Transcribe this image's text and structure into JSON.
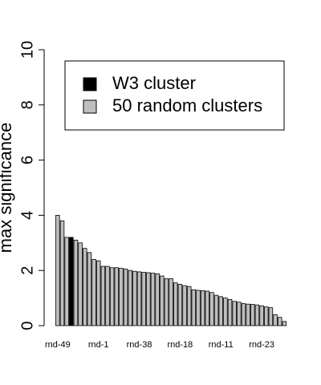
{
  "chart_data": {
    "type": "bar",
    "ylabel": "max significance",
    "categories": [
      "rnd-49",
      null,
      null,
      null,
      null,
      null,
      null,
      null,
      null,
      "rnd-1",
      null,
      null,
      null,
      null,
      null,
      null,
      null,
      null,
      "rnd-38",
      null,
      null,
      null,
      null,
      null,
      null,
      null,
      null,
      "rnd-18",
      null,
      null,
      null,
      null,
      null,
      null,
      null,
      null,
      "rnd-11",
      null,
      null,
      null,
      null,
      null,
      null,
      null,
      null,
      "rnd-23",
      null,
      null,
      null,
      null,
      null
    ],
    "series": [
      {
        "name": "W3 cluster",
        "color": "#000000",
        "values": [
          null,
          null,
          null,
          3.2,
          null,
          null,
          null,
          null,
          null,
          null,
          null,
          null,
          null,
          null,
          null,
          null,
          null,
          null,
          null,
          null,
          null,
          null,
          null,
          null,
          null,
          null,
          null,
          null,
          null,
          null,
          null,
          null,
          null,
          null,
          null,
          null,
          null,
          null,
          null,
          null,
          null,
          null,
          null,
          null,
          null,
          null,
          null,
          null,
          null,
          null,
          null
        ]
      },
      {
        "name": "50 random clusters",
        "color": "#bebebe",
        "values": [
          4.0,
          3.8,
          3.2,
          null,
          3.1,
          3.0,
          2.8,
          2.65,
          2.4,
          2.35,
          2.15,
          2.15,
          2.1,
          2.1,
          2.08,
          2.05,
          2.0,
          1.97,
          1.95,
          1.93,
          1.92,
          1.9,
          1.88,
          1.8,
          1.7,
          1.7,
          1.55,
          1.5,
          1.45,
          1.42,
          1.3,
          1.28,
          1.27,
          1.25,
          1.2,
          1.1,
          1.05,
          1.0,
          0.95,
          0.88,
          0.85,
          0.8,
          0.78,
          0.77,
          0.75,
          0.72,
          0.68,
          0.65,
          0.4,
          0.3,
          0.15
        ]
      }
    ],
    "ylim": [
      0,
      10
    ],
    "yticks": [
      0,
      2,
      4,
      6,
      8,
      10
    ],
    "legend": "topright"
  }
}
